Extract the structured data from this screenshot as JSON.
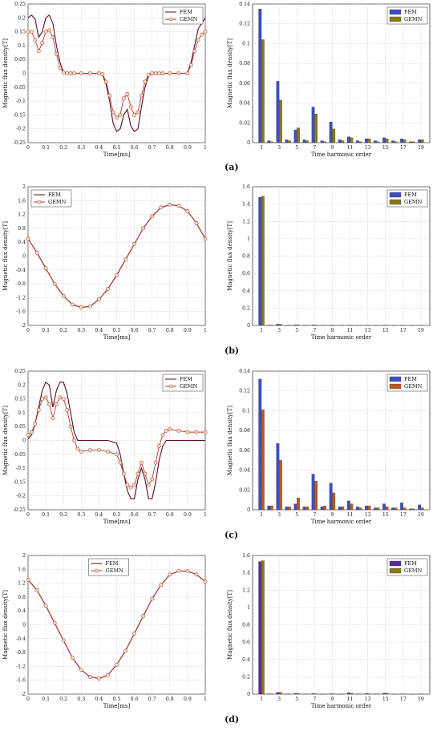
{
  "captions": [
    "(a)",
    "(b)",
    "(c)",
    "(d)"
  ],
  "chart_data": [
    {
      "type": "line",
      "xlabel": "Time[ms]",
      "ylabel": "Magnetic flux density[T]",
      "xlim": [
        0,
        1
      ],
      "ylim": [
        -0.25,
        0.25
      ],
      "xticks": [
        "0",
        "0.1",
        "0.2",
        "0.3",
        "0.4",
        "0.5",
        "0.6",
        "0.7",
        "0.8",
        "0.9",
        "1"
      ],
      "yticks": [
        "-0.25",
        "-0.2",
        "-0.15",
        "-0.1",
        "-0.05",
        "0",
        "0.05",
        "0.1",
        "0.15",
        "0.2",
        "0.25"
      ],
      "grid": true,
      "legend": "top-right",
      "series": [
        {
          "name": "FEM",
          "color": "#5a0f1f",
          "x": [
            0,
            0.02,
            0.04,
            0.06,
            0.08,
            0.1,
            0.12,
            0.14,
            0.16,
            0.18,
            0.2,
            0.22,
            0.24,
            0.26,
            0.3,
            0.35,
            0.4,
            0.42,
            0.44,
            0.46,
            0.48,
            0.5,
            0.52,
            0.54,
            0.56,
            0.58,
            0.6,
            0.62,
            0.64,
            0.66,
            0.68,
            0.7,
            0.72,
            0.74,
            0.76,
            0.8,
            0.85,
            0.9,
            0.92,
            0.94,
            0.96,
            0.98,
            1.0
          ],
          "y": [
            0.2,
            0.21,
            0.195,
            0.13,
            0.15,
            0.2,
            0.21,
            0.18,
            0.1,
            0.04,
            0.005,
            0,
            0,
            0,
            0,
            0,
            0,
            -0.005,
            -0.04,
            -0.1,
            -0.18,
            -0.21,
            -0.2,
            -0.15,
            -0.13,
            -0.19,
            -0.21,
            -0.2,
            -0.12,
            -0.05,
            -0.01,
            0,
            0,
            0,
            0,
            0,
            0,
            0,
            0.04,
            0.1,
            0.16,
            0.18,
            0.2
          ]
        },
        {
          "name": "GEMN",
          "color": "#b03a2e",
          "x": [
            0,
            0.02,
            0.04,
            0.06,
            0.08,
            0.1,
            0.12,
            0.14,
            0.16,
            0.18,
            0.2,
            0.22,
            0.24,
            0.26,
            0.3,
            0.35,
            0.4,
            0.42,
            0.44,
            0.46,
            0.48,
            0.5,
            0.52,
            0.54,
            0.56,
            0.58,
            0.6,
            0.62,
            0.64,
            0.66,
            0.68,
            0.7,
            0.72,
            0.74,
            0.76,
            0.8,
            0.85,
            0.9,
            0.92,
            0.94,
            0.96,
            0.98,
            1.0
          ],
          "y": [
            0.15,
            0.15,
            0.12,
            0.08,
            0.11,
            0.15,
            0.155,
            0.13,
            0.07,
            0.02,
            0.003,
            0,
            0,
            0,
            0,
            0,
            0,
            -0.003,
            -0.03,
            -0.08,
            -0.14,
            -0.16,
            -0.15,
            -0.09,
            -0.075,
            -0.12,
            -0.15,
            -0.14,
            -0.08,
            -0.03,
            -0.005,
            0,
            0,
            0,
            0,
            0,
            0,
            0,
            0.03,
            0.08,
            0.12,
            0.14,
            0.15
          ]
        }
      ]
    },
    {
      "type": "bar",
      "xlabel": "Time harmonic order",
      "ylabel": "Magnetic flux density[T]",
      "ylim": [
        0,
        0.14
      ],
      "yticks": [
        "0",
        "0.02",
        "0.04",
        "0.06",
        "0.08",
        "0.1",
        "0.12",
        "0.14"
      ],
      "grid": true,
      "legend": "top-right",
      "categories": [
        "1",
        "2",
        "3",
        "4",
        "5",
        "6",
        "7",
        "8",
        "9",
        "10",
        "11",
        "12",
        "13",
        "14",
        "15",
        "16",
        "17",
        "18",
        "19"
      ],
      "xticks": [
        "1",
        "3",
        "5",
        "7",
        "9",
        "11",
        "13",
        "15",
        "17",
        "19"
      ],
      "series": [
        {
          "name": "FEM",
          "color": "#3b4fc4",
          "values": [
            0.135,
            0.002,
            0.062,
            0.003,
            0.013,
            0.003,
            0.036,
            0.002,
            0.021,
            0.003,
            0.006,
            0.002,
            0.004,
            0.002,
            0.005,
            0.002,
            0.004,
            0.001,
            0.003
          ]
        },
        {
          "name": "GEMN",
          "color": "#8a7a12",
          "values": [
            0.104,
            0.001,
            0.043,
            0.002,
            0.015,
            0.002,
            0.029,
            0.001,
            0.014,
            0.002,
            0.005,
            0.001,
            0.004,
            0.001,
            0.004,
            0.001,
            0.003,
            0.001,
            0.003
          ]
        }
      ]
    },
    {
      "type": "line",
      "xlabel": "Time[ms]",
      "ylabel": "Magnetic flux density[T]",
      "xlim": [
        0,
        1
      ],
      "ylim": [
        -2,
        2
      ],
      "xticks": [
        "0",
        "0.1",
        "0.2",
        "0.3",
        "0.4",
        "0.5",
        "0.6",
        "0.7",
        "0.8",
        "0.9",
        "1"
      ],
      "yticks": [
        "-2",
        "-1.6",
        "-1.2",
        "-0.8",
        "-0.4",
        "0",
        "0.4",
        "0.8",
        "1.2",
        "1.6",
        "2"
      ],
      "grid": true,
      "legend": "top-left",
      "series": [
        {
          "name": "FEM",
          "color": "#5a0f1f",
          "x": [
            0,
            0.05,
            0.1,
            0.15,
            0.2,
            0.25,
            0.3,
            0.35,
            0.4,
            0.45,
            0.5,
            0.55,
            0.6,
            0.65,
            0.7,
            0.75,
            0.8,
            0.85,
            0.9,
            0.95,
            1.0
          ],
          "y": [
            0.5,
            0.1,
            -0.35,
            -0.8,
            -1.15,
            -1.4,
            -1.48,
            -1.45,
            -1.25,
            -0.95,
            -0.55,
            -0.1,
            0.35,
            0.8,
            1.15,
            1.4,
            1.48,
            1.45,
            1.3,
            0.95,
            0.5
          ]
        },
        {
          "name": "GEMN",
          "color": "#b03a2e",
          "x": [
            0,
            0.05,
            0.1,
            0.15,
            0.2,
            0.25,
            0.3,
            0.35,
            0.4,
            0.45,
            0.5,
            0.55,
            0.6,
            0.65,
            0.7,
            0.75,
            0.8,
            0.85,
            0.9,
            0.95,
            1.0
          ],
          "y": [
            0.5,
            0.1,
            -0.35,
            -0.8,
            -1.15,
            -1.4,
            -1.48,
            -1.45,
            -1.25,
            -0.95,
            -0.55,
            -0.1,
            0.35,
            0.8,
            1.15,
            1.4,
            1.48,
            1.45,
            1.3,
            0.95,
            0.5
          ]
        }
      ]
    },
    {
      "type": "bar",
      "xlabel": "Time harmonic order",
      "ylabel": "Magnetic flux density[T]",
      "ylim": [
        0,
        1.6
      ],
      "yticks": [
        "0",
        "0.2",
        "0.4",
        "0.6",
        "0.8",
        "1",
        "1.2",
        "1.4",
        "1.6"
      ],
      "grid": true,
      "legend": "top-right",
      "categories": [
        "1",
        "2",
        "3",
        "4",
        "5",
        "6",
        "7",
        "8",
        "9",
        "10",
        "11",
        "12",
        "13",
        "14",
        "15",
        "16",
        "17",
        "18",
        "19"
      ],
      "xticks": [
        "1",
        "3",
        "5",
        "7",
        "9",
        "11",
        "13",
        "15",
        "17",
        "19"
      ],
      "series": [
        {
          "name": "FEM",
          "color": "#3b4fc4",
          "values": [
            1.48,
            0.005,
            0.015,
            0.003,
            0.008,
            0.002,
            0.006,
            0.002,
            0.004,
            0.001,
            0.004,
            0.001,
            0.003,
            0.001,
            0.002,
            0.001,
            0.002,
            0.001,
            0.002
          ]
        },
        {
          "name": "GEMN",
          "color": "#8a7a12",
          "values": [
            1.49,
            0.004,
            0.014,
            0.002,
            0.007,
            0.002,
            0.005,
            0.001,
            0.004,
            0.001,
            0.003,
            0.001,
            0.003,
            0.001,
            0.002,
            0.001,
            0.002,
            0.001,
            0.002
          ]
        }
      ]
    },
    {
      "type": "line",
      "xlabel": "Time[ms]",
      "ylabel": "Magnetic flux density[T]",
      "xlim": [
        0,
        1
      ],
      "ylim": [
        -0.25,
        0.25
      ],
      "xticks": [
        "0",
        "0.1",
        "0.2",
        "0.3",
        "0.4",
        "0.5",
        "0.6",
        "0.7",
        "0.8",
        "0.9",
        "1"
      ],
      "yticks": [
        "-0.25",
        "-0.2",
        "-0.15",
        "-0.1",
        "-0.05",
        "0",
        "0.05",
        "0.1",
        "0.15",
        "0.2",
        "0.25"
      ],
      "grid": true,
      "legend": "top-right",
      "series": [
        {
          "name": "FEM",
          "color": "#5a0f1f",
          "x": [
            0,
            0.02,
            0.04,
            0.06,
            0.08,
            0.1,
            0.12,
            0.14,
            0.16,
            0.18,
            0.2,
            0.22,
            0.24,
            0.26,
            0.28,
            0.3,
            0.35,
            0.4,
            0.45,
            0.5,
            0.52,
            0.54,
            0.56,
            0.58,
            0.6,
            0.62,
            0.64,
            0.66,
            0.68,
            0.7,
            0.72,
            0.74,
            0.76,
            0.78,
            0.8,
            0.85,
            0.9,
            0.95,
            1.0
          ],
          "y": [
            0.005,
            0.02,
            0.06,
            0.12,
            0.18,
            0.21,
            0.2,
            0.12,
            0.18,
            0.21,
            0.21,
            0.17,
            0.1,
            0.03,
            0,
            0,
            0,
            0,
            0,
            -0.01,
            -0.05,
            -0.12,
            -0.18,
            -0.21,
            -0.21,
            -0.14,
            -0.1,
            -0.14,
            -0.21,
            -0.21,
            -0.15,
            -0.07,
            -0.02,
            0,
            0,
            0,
            0,
            0,
            0
          ]
        },
        {
          "name": "GEMN",
          "color": "#b03a2e",
          "x": [
            0,
            0.02,
            0.04,
            0.06,
            0.08,
            0.1,
            0.12,
            0.14,
            0.16,
            0.18,
            0.2,
            0.22,
            0.24,
            0.26,
            0.28,
            0.3,
            0.35,
            0.4,
            0.45,
            0.5,
            0.52,
            0.54,
            0.56,
            0.58,
            0.6,
            0.62,
            0.64,
            0.66,
            0.68,
            0.7,
            0.72,
            0.74,
            0.76,
            0.78,
            0.8,
            0.85,
            0.9,
            0.95,
            1.0
          ],
          "y": [
            0.02,
            0.03,
            0.06,
            0.11,
            0.15,
            0.155,
            0.13,
            0.08,
            0.13,
            0.155,
            0.15,
            0.11,
            0.05,
            0.0,
            -0.03,
            -0.04,
            -0.035,
            -0.035,
            -0.04,
            -0.05,
            -0.08,
            -0.12,
            -0.16,
            -0.17,
            -0.16,
            -0.12,
            -0.08,
            -0.12,
            -0.16,
            -0.14,
            -0.08,
            -0.02,
            0.02,
            0.035,
            0.04,
            0.035,
            0.03,
            0.03,
            0.03
          ]
        }
      ]
    },
    {
      "type": "bar",
      "xlabel": "Time harmonic order",
      "ylabel": "Magnetic flux density[T]",
      "ylim": [
        0,
        0.14
      ],
      "yticks": [
        "0",
        "0.02",
        "0.04",
        "0.06",
        "0.08",
        "0.1",
        "0.12",
        "0.14"
      ],
      "grid": true,
      "legend": "top-right",
      "categories": [
        "1",
        "2",
        "3",
        "4",
        "5",
        "6",
        "7",
        "8",
        "9",
        "10",
        "11",
        "12",
        "13",
        "14",
        "15",
        "16",
        "17",
        "18",
        "19"
      ],
      "xticks": [
        "1",
        "3",
        "5",
        "7",
        "9",
        "11",
        "13",
        "15",
        "17",
        "19"
      ],
      "series": [
        {
          "name": "FEM",
          "color": "#3b4fc4",
          "values": [
            0.132,
            0.004,
            0.067,
            0.003,
            0.006,
            0.003,
            0.036,
            0.003,
            0.027,
            0.003,
            0.009,
            0.003,
            0.004,
            0.002,
            0.006,
            0.002,
            0.007,
            0.001,
            0.005
          ]
        },
        {
          "name": "GEMN",
          "color": "#c0581a",
          "values": [
            0.101,
            0.004,
            0.05,
            0.003,
            0.012,
            0.003,
            0.029,
            0.004,
            0.017,
            0.003,
            0.006,
            0.002,
            0.004,
            0.002,
            0.003,
            0.002,
            0.002,
            0.001,
            0.002
          ]
        }
      ]
    },
    {
      "type": "line",
      "xlabel": "Time[ms]",
      "ylabel": "Magnetic flux density[T]",
      "xlim": [
        0,
        1
      ],
      "ylim": [
        -2,
        2
      ],
      "xticks": [
        "0",
        "0.1",
        "0.2",
        "0.3",
        "0.4",
        "0.5",
        "0.6",
        "0.7",
        "0.8",
        "0.9",
        "1"
      ],
      "yticks": [
        "-2",
        "-1.6",
        "-1.2",
        "-0.8",
        "-0.4",
        "0",
        "0.4",
        "0.8",
        "1.2",
        "1.6",
        "2"
      ],
      "grid": true,
      "legend": "top-center",
      "series": [
        {
          "name": "FEM",
          "color": "#5a0f1f",
          "x": [
            0,
            0.05,
            0.1,
            0.15,
            0.2,
            0.25,
            0.3,
            0.35,
            0.4,
            0.45,
            0.5,
            0.55,
            0.6,
            0.65,
            0.7,
            0.75,
            0.8,
            0.85,
            0.9,
            0.95,
            1.0
          ],
          "y": [
            1.3,
            1.0,
            0.55,
            0.05,
            -0.45,
            -0.95,
            -1.3,
            -1.5,
            -1.55,
            -1.45,
            -1.15,
            -0.75,
            -0.25,
            0.25,
            0.75,
            1.15,
            1.45,
            1.55,
            1.55,
            1.45,
            1.25
          ]
        },
        {
          "name": "GEMN",
          "color": "#b03a2e",
          "x": [
            0,
            0.05,
            0.1,
            0.15,
            0.2,
            0.25,
            0.3,
            0.35,
            0.4,
            0.45,
            0.5,
            0.55,
            0.6,
            0.65,
            0.7,
            0.75,
            0.8,
            0.85,
            0.9,
            0.95,
            1.0
          ],
          "y": [
            1.3,
            1.0,
            0.55,
            0.05,
            -0.45,
            -0.95,
            -1.3,
            -1.5,
            -1.55,
            -1.45,
            -1.15,
            -0.75,
            -0.25,
            0.25,
            0.75,
            1.15,
            1.45,
            1.55,
            1.55,
            1.45,
            1.25
          ]
        }
      ]
    },
    {
      "type": "bar",
      "xlabel": "Time harmonic order",
      "ylabel": "Magnetic flux density[T]",
      "ylim": [
        0,
        1.6
      ],
      "yticks": [
        "0",
        "0.2",
        "0.4",
        "0.6",
        "0.8",
        "1",
        "1.2",
        "1.4",
        "1.6"
      ],
      "grid": true,
      "legend": "top-right",
      "categories": [
        "1",
        "2",
        "3",
        "4",
        "5",
        "6",
        "7",
        "8",
        "9",
        "10",
        "11",
        "12",
        "13",
        "14",
        "15",
        "16",
        "17",
        "18",
        "19"
      ],
      "xticks": [
        "1",
        "3",
        "5",
        "7",
        "9",
        "11",
        "13",
        "15",
        "17",
        "19"
      ],
      "series": [
        {
          "name": "FEM",
          "color": "#5b2aa0",
          "values": [
            1.53,
            0.004,
            0.02,
            0.003,
            0.008,
            0.002,
            0.006,
            0.002,
            0.005,
            0.002,
            0.015,
            0.002,
            0.006,
            0.002,
            0.01,
            0.001,
            0.002,
            0.001,
            0.002
          ]
        },
        {
          "name": "GEMN",
          "color": "#8a7a12",
          "values": [
            1.54,
            0.003,
            0.02,
            0.002,
            0.007,
            0.002,
            0.005,
            0.001,
            0.004,
            0.001,
            0.012,
            0.001,
            0.005,
            0.001,
            0.012,
            0.001,
            0.002,
            0.001,
            0.002
          ]
        }
      ]
    }
  ]
}
